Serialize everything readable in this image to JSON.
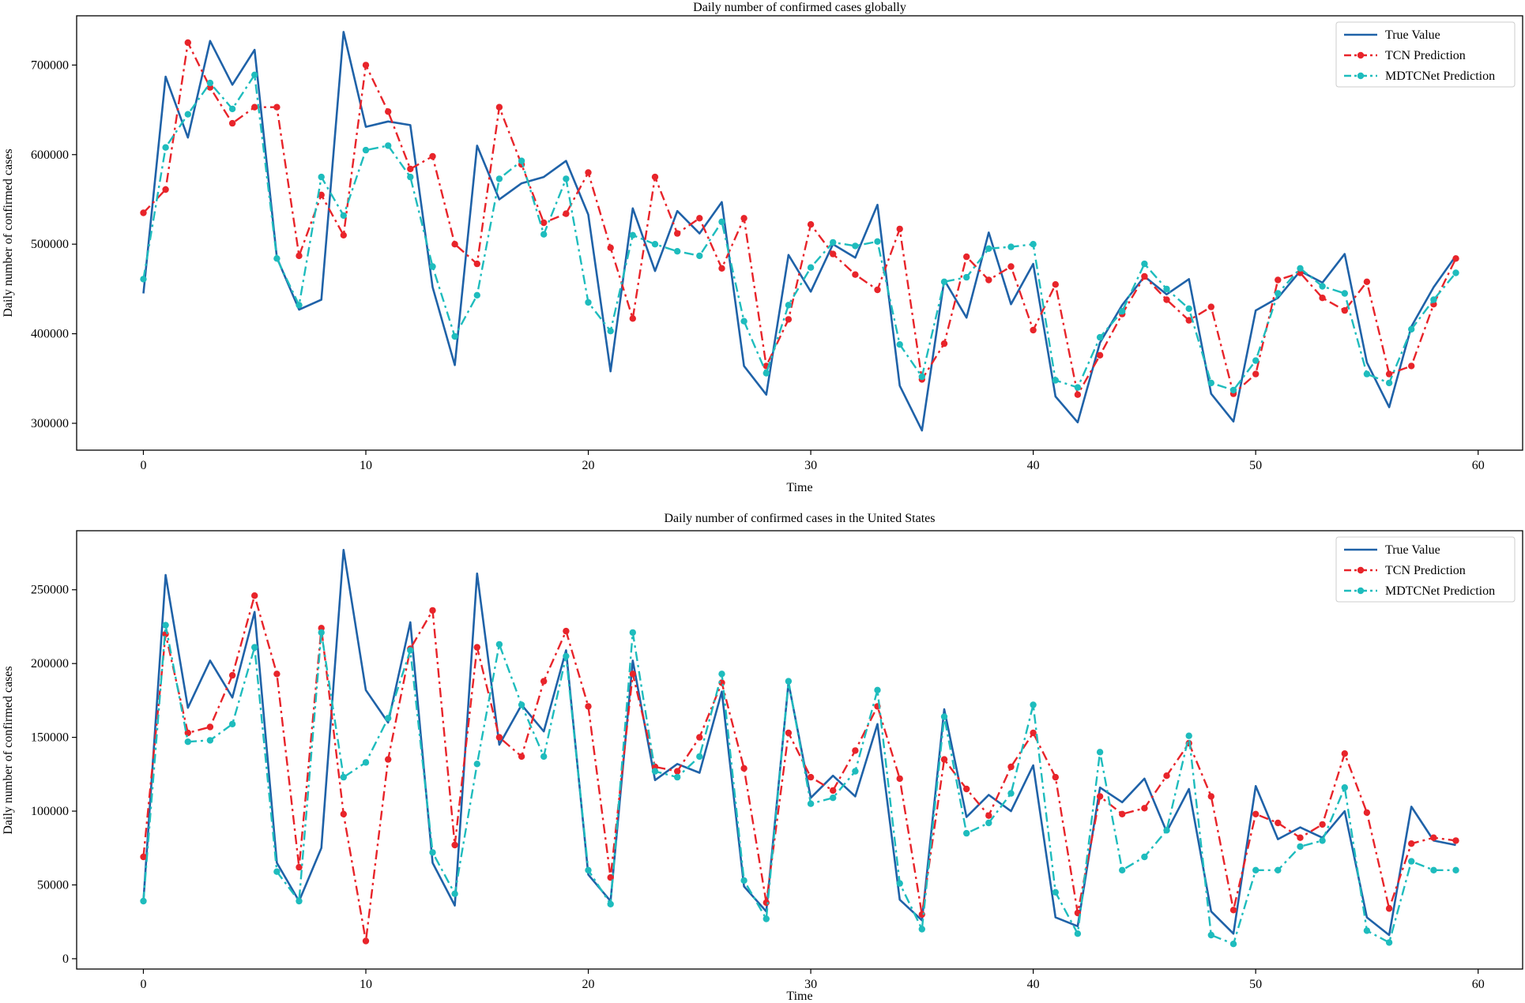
{
  "chart_data": [
    {
      "type": "line",
      "title": "Daily number of confirmed cases globally",
      "xlabel": "Time",
      "ylabel": "Daily number of confirmed cases",
      "xlim": [
        -3,
        62
      ],
      "ylim": [
        270000,
        755000
      ],
      "xticks": [
        0,
        10,
        20,
        30,
        40,
        50,
        60
      ],
      "yticks": [
        300000,
        400000,
        500000,
        600000,
        700000
      ],
      "ytick_labels": [
        "300000",
        "400000",
        "500000",
        "600000",
        "700000"
      ],
      "legend_position": "top-right",
      "series": [
        {
          "name": "True Value",
          "color": "#1f62a8",
          "style": "solid",
          "markers": false,
          "values": [
            445000,
            687000,
            619000,
            727000,
            678000,
            717000,
            485000,
            427000,
            438000,
            737000,
            631000,
            637000,
            633000,
            452000,
            365000,
            610000,
            550000,
            568000,
            575000,
            593000,
            533000,
            358000,
            540000,
            470000,
            537000,
            512000,
            547000,
            364000,
            332000,
            488000,
            447000,
            500000,
            485000,
            544000,
            342000,
            292000,
            460000,
            418000,
            513000,
            433000,
            478000,
            330000,
            301000,
            390000,
            432000,
            464000,
            444000,
            461000,
            333000,
            302000,
            426000,
            440000,
            470000,
            457000,
            489000,
            368000,
            318000,
            408000,
            452000,
            487000
          ]
        },
        {
          "name": "TCN Prediction",
          "color": "#e8242a",
          "style": "dashdot",
          "markers": true,
          "values": [
            535000,
            561000,
            725000,
            675000,
            635000,
            653000,
            653000,
            487000,
            555000,
            510000,
            700000,
            648000,
            584000,
            598000,
            500000,
            478000,
            653000,
            589000,
            524000,
            534000,
            580000,
            496000,
            417000,
            575000,
            512000,
            529000,
            473000,
            529000,
            364000,
            416000,
            522000,
            489000,
            466000,
            449000,
            517000,
            349000,
            389000,
            486000,
            460000,
            475000,
            404000,
            455000,
            332000,
            376000,
            422000,
            464000,
            438000,
            415000,
            430000,
            333000,
            355000,
            460000,
            468000,
            440000,
            426000,
            458000,
            355000,
            364000,
            433000,
            484000
          ]
        },
        {
          "name": "MDTCNet Prediction",
          "color": "#1ebcbd",
          "style": "dashdot",
          "markers": true,
          "values": [
            461000,
            608000,
            645000,
            680000,
            651000,
            689000,
            484000,
            432000,
            575000,
            532000,
            605000,
            610000,
            575000,
            475000,
            397000,
            443000,
            573000,
            593000,
            511000,
            573000,
            435000,
            403000,
            510000,
            500000,
            492000,
            487000,
            525000,
            414000,
            356000,
            432000,
            474000,
            502000,
            498000,
            503000,
            388000,
            352000,
            458000,
            463000,
            495000,
            497000,
            500000,
            348000,
            340000,
            396000,
            425000,
            478000,
            450000,
            428000,
            345000,
            337000,
            370000,
            445000,
            473000,
            453000,
            445000,
            355000,
            345000,
            405000,
            438000,
            468000
          ]
        }
      ]
    },
    {
      "type": "line",
      "title": "Daily number of confirmed cases in the United States",
      "xlabel": "Time",
      "ylabel": "Daily number of confirmed cases",
      "xlim": [
        -3,
        62
      ],
      "ylim": [
        -7000,
        290000
      ],
      "xticks": [
        0,
        10,
        20,
        30,
        40,
        50,
        60
      ],
      "yticks": [
        0,
        50000,
        100000,
        150000,
        200000,
        250000
      ],
      "ytick_labels": [
        "0",
        "50000",
        "100000",
        "150000",
        "200000",
        "250000"
      ],
      "legend_position": "top-right",
      "series": [
        {
          "name": "True Value",
          "color": "#1f62a8",
          "style": "solid",
          "markers": false,
          "values": [
            39000,
            260000,
            170000,
            202000,
            177000,
            235000,
            65000,
            39000,
            75000,
            277000,
            182000,
            160000,
            228000,
            65000,
            36000,
            261000,
            145000,
            172000,
            154000,
            209000,
            57000,
            39000,
            202000,
            121000,
            132000,
            126000,
            181000,
            49000,
            32000,
            187000,
            109000,
            124000,
            110000,
            159000,
            40000,
            26000,
            169000,
            96000,
            111000,
            100000,
            131000,
            28000,
            22000,
            116000,
            106000,
            122000,
            86000,
            115000,
            32000,
            17000,
            117000,
            81000,
            89000,
            82000,
            100000,
            28000,
            16000,
            103000,
            80000,
            77000
          ]
        },
        {
          "name": "TCN Prediction",
          "color": "#e8242a",
          "style": "dashdot",
          "markers": true,
          "values": [
            69000,
            220000,
            153000,
            157000,
            192000,
            246000,
            193000,
            62000,
            224000,
            98000,
            12000,
            135000,
            210000,
            236000,
            77000,
            211000,
            150000,
            137000,
            188000,
            222000,
            171000,
            55000,
            193000,
            130000,
            127000,
            150000,
            187000,
            129000,
            38000,
            153000,
            123000,
            114000,
            141000,
            171000,
            122000,
            30000,
            135000,
            115000,
            97000,
            130000,
            153000,
            123000,
            31000,
            110000,
            98000,
            102000,
            124000,
            146000,
            110000,
            33000,
            98000,
            92000,
            82000,
            91000,
            139000,
            99000,
            34000,
            78000,
            82000,
            80000
          ]
        },
        {
          "name": "MDTCNet Prediction",
          "color": "#1ebcbd",
          "style": "dashdot",
          "markers": true,
          "values": [
            39000,
            226000,
            147000,
            148000,
            159000,
            211000,
            59000,
            39000,
            221000,
            123000,
            133000,
            163000,
            209000,
            72000,
            44000,
            132000,
            213000,
            172000,
            137000,
            205000,
            60000,
            37000,
            221000,
            127000,
            123000,
            137000,
            193000,
            53000,
            27000,
            188000,
            105000,
            109000,
            127000,
            182000,
            51000,
            20000,
            164000,
            85000,
            92000,
            112000,
            172000,
            45000,
            17000,
            140000,
            60000,
            69000,
            87000,
            151000,
            16000,
            10000,
            60000,
            60000,
            76000,
            80000,
            116000,
            19000,
            11000,
            66000,
            60000,
            60000
          ]
        }
      ]
    }
  ]
}
